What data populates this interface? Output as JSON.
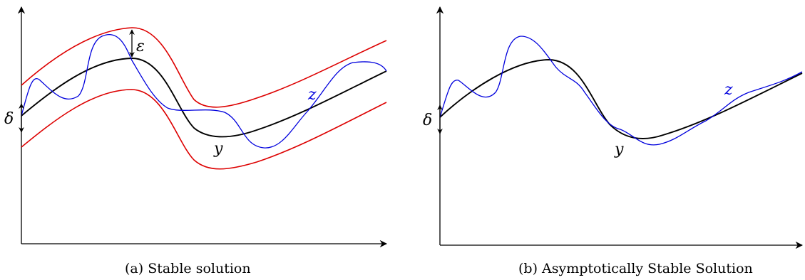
{
  "colors": {
    "axis": "#000000",
    "solution_y": "#000000",
    "perturbed_z": "#0000dd",
    "epsilon_band": "#dd0000"
  },
  "panel_a": {
    "caption": "(a) Stable solution",
    "label_y": "y",
    "label_z": "z",
    "label_delta": "δ",
    "label_epsilon": "ε"
  },
  "panel_b": {
    "caption": "(b) Asymptotically Stable Solution",
    "label_y": "y",
    "label_z": "z",
    "label_delta": "δ"
  }
}
